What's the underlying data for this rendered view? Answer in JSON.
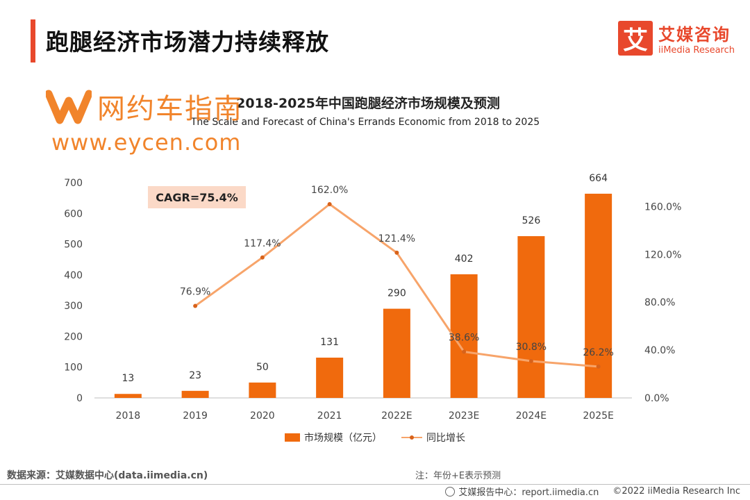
{
  "header": {
    "title": "跑腿经济市场潜力持续释放",
    "brand_logo_char": "艾",
    "brand_cn": "艾媒咨询",
    "brand_en": "iiMedia Research"
  },
  "watermark": {
    "cn": "网约车指南",
    "url": "www.eycen.com"
  },
  "annotation": {
    "cagr": "CAGR=75.4%"
  },
  "chart_data": {
    "type": "bar",
    "title": "2018-2025年中国跑腿经济市场规模及预测",
    "subtitle": "The Scale and Forecast of China's Errands Economic from 2018 to 2025",
    "categories": [
      "2018",
      "2019",
      "2020",
      "2021",
      "2022E",
      "2023E",
      "2024E",
      "2025E"
    ],
    "series": [
      {
        "name": "市场规模（亿元）",
        "type": "bar",
        "axis": "left",
        "values": [
          13,
          23,
          50,
          131,
          290,
          402,
          526,
          664
        ],
        "labels": [
          "13",
          "23",
          "50",
          "131",
          "290",
          "402",
          "526",
          "664"
        ],
        "color": "#f06a0d"
      },
      {
        "name": "同比增长",
        "type": "line",
        "axis": "right",
        "values": [
          null,
          76.9,
          117.4,
          162.0,
          121.4,
          38.6,
          30.8,
          26.2
        ],
        "labels": [
          null,
          "76.9%",
          "117.4%",
          "162.0%",
          "121.4%",
          "38.6%",
          "30.8%",
          "26.2%"
        ],
        "color": "#f7a46a",
        "marker_color": "#d8621a"
      }
    ],
    "ylim": [
      0,
      700
    ],
    "y_ticks": [
      0,
      100,
      200,
      300,
      400,
      500,
      600,
      700
    ],
    "y_tick_labels": [
      "0",
      "100",
      "200",
      "300",
      "400",
      "500",
      "600",
      "700"
    ],
    "y2lim": [
      0,
      180
    ],
    "y2_ticks": [
      0,
      40,
      80,
      120,
      160
    ],
    "y2_tick_labels": [
      "0.0%",
      "40.0%",
      "80.0%",
      "120.0%",
      "160.0%"
    ],
    "grid": false,
    "legend_position": "bottom"
  },
  "footer": {
    "source": "数据来源：艾媒数据中心(data.iimedia.cn)",
    "note": "注：年份+E表示预测",
    "report": "艾媒报告中心：report.iimedia.cn",
    "copyright": "©2022  iiMedia Research  Inc"
  }
}
